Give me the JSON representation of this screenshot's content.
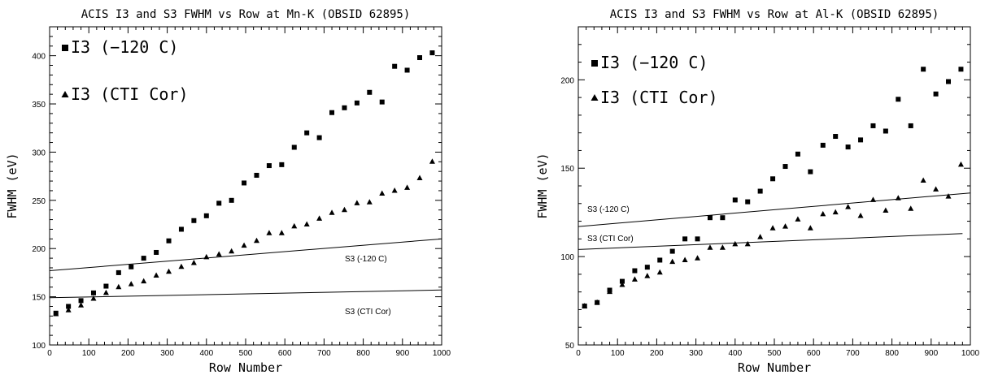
{
  "chart_data": [
    {
      "type": "scatter",
      "title": "ACIS I3 and S3 FWHM vs Row at Mn-K (OBSID 62895)",
      "xlabel": "Row Number",
      "ylabel": "FWHM (eV)",
      "xlim": [
        0,
        1000
      ],
      "ylim": [
        100,
        430
      ],
      "xticks": [
        "0",
        "100",
        "200",
        "300",
        "400",
        "500",
        "600",
        "700",
        "800",
        "900",
        "1000"
      ],
      "yticks": [
        "100",
        "150",
        "200",
        "250",
        "300",
        "350",
        "400"
      ],
      "legend_position": "top-left",
      "series": [
        {
          "name": "I3 (−120 C)",
          "marker": "square",
          "x": [
            16,
            48,
            80,
            112,
            144,
            176,
            208,
            240,
            272,
            304,
            336,
            368,
            400,
            432,
            464,
            496,
            528,
            560,
            592,
            624,
            656,
            688,
            720,
            752,
            784,
            816,
            848,
            880,
            912,
            944,
            976
          ],
          "y": [
            133,
            140,
            146,
            154,
            161,
            175,
            181,
            190,
            196,
            208,
            220,
            229,
            234,
            247,
            250,
            268,
            276,
            286,
            287,
            305,
            320,
            315,
            341,
            346,
            351,
            362,
            352,
            389,
            385,
            398,
            403
          ]
        },
        {
          "name": "I3 (CTI Cor)",
          "marker": "triangle",
          "x": [
            16,
            48,
            80,
            112,
            144,
            176,
            208,
            240,
            272,
            304,
            336,
            368,
            400,
            432,
            464,
            496,
            528,
            560,
            592,
            624,
            656,
            688,
            720,
            752,
            784,
            816,
            848,
            880,
            912,
            944,
            976
          ],
          "y": [
            132,
            136,
            141,
            148,
            154,
            160,
            163,
            166,
            172,
            176,
            181,
            185,
            191,
            194,
            197,
            203,
            208,
            216,
            216,
            223,
            225,
            231,
            237,
            240,
            247,
            248,
            257,
            260,
            263,
            273,
            290
          ]
        }
      ],
      "lines": [
        {
          "name": "S3 (-120 C)",
          "x": [
            0,
            1000
          ],
          "y": [
            177,
            210
          ]
        },
        {
          "name": "S3 (CTI Cor)",
          "x": [
            0,
            1000
          ],
          "y": [
            149,
            157
          ]
        }
      ]
    },
    {
      "type": "scatter",
      "title": "ACIS I3 and S3 FWHM vs Row at Al-K (OBSID 62895)",
      "xlabel": "Row Number",
      "ylabel": "FWHM (eV)",
      "xlim": [
        0,
        1000
      ],
      "ylim": [
        50,
        230
      ],
      "xticks": [
        "0",
        "100",
        "200",
        "300",
        "400",
        "500",
        "600",
        "700",
        "800",
        "900",
        "1000"
      ],
      "yticks": [
        "50",
        "100",
        "150",
        "200"
      ],
      "legend_position": "top-left",
      "series": [
        {
          "name": "I3 (−120 C)",
          "marker": "square",
          "x": [
            16,
            48,
            80,
            112,
            144,
            176,
            208,
            240,
            272,
            304,
            336,
            368,
            400,
            432,
            464,
            496,
            528,
            560,
            592,
            624,
            656,
            688,
            720,
            752,
            784,
            816,
            848,
            880,
            912,
            944,
            976
          ],
          "y": [
            72,
            74,
            81,
            86,
            92,
            94,
            98,
            103,
            110,
            110,
            122,
            122,
            132,
            131,
            137,
            144,
            151,
            158,
            148,
            163,
            168,
            162,
            166,
            174,
            171,
            189,
            174,
            206,
            192,
            199,
            206
          ]
        },
        {
          "name": "I3 (CTI Cor)",
          "marker": "triangle",
          "x": [
            16,
            48,
            80,
            112,
            144,
            176,
            208,
            240,
            272,
            304,
            336,
            368,
            400,
            432,
            464,
            496,
            528,
            560,
            592,
            624,
            656,
            688,
            720,
            752,
            784,
            816,
            848,
            880,
            912,
            944,
            976
          ],
          "y": [
            72,
            74,
            80,
            84,
            87,
            89,
            91,
            97,
            98,
            99,
            105,
            105,
            107,
            107,
            111,
            116,
            117,
            121,
            116,
            124,
            125,
            128,
            123,
            132,
            126,
            133,
            127,
            143,
            138,
            134,
            152
          ]
        }
      ],
      "lines": [
        {
          "name": "S3 (-120 C)",
          "x": [
            0,
            1000
          ],
          "y": [
            117,
            136
          ]
        },
        {
          "name": "S3 (CTI Cor)",
          "x": [
            0,
            980
          ],
          "y": [
            104,
            113
          ]
        }
      ]
    }
  ]
}
